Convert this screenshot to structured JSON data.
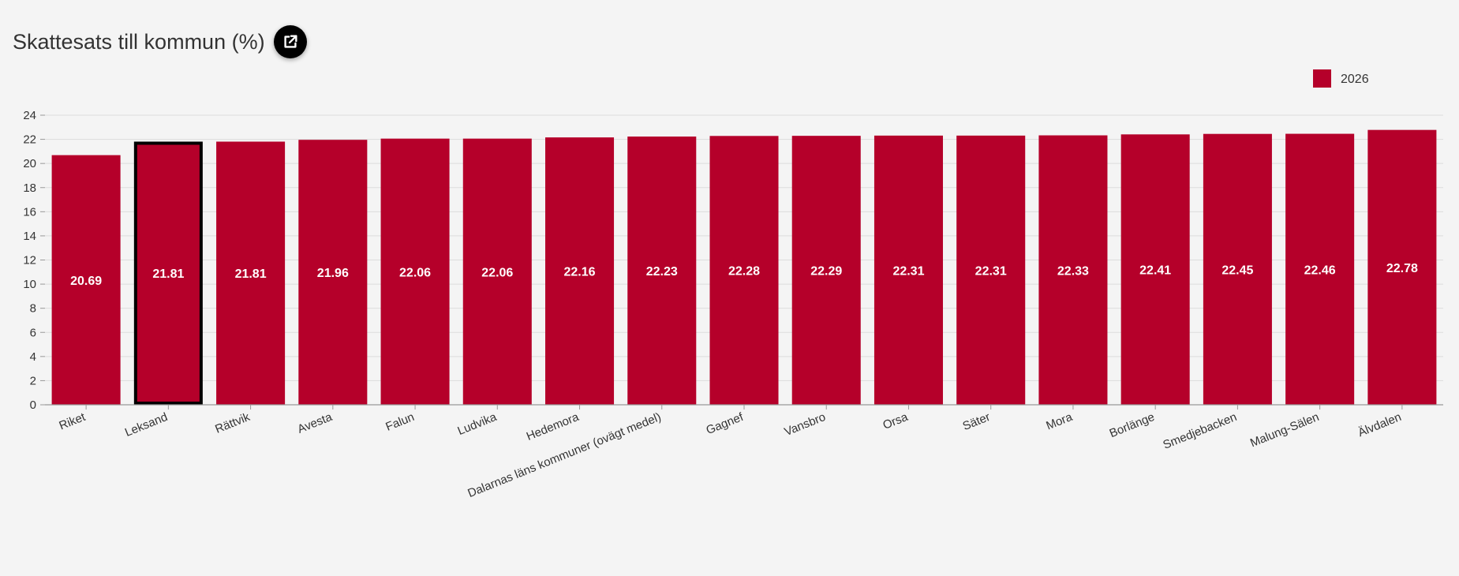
{
  "header": {
    "title": "Skattesats till kommun (%)",
    "open_icon": "external-link-icon"
  },
  "chart_data": {
    "type": "bar",
    "categories": [
      "Riket",
      "Leksand",
      "Rättvik",
      "Avesta",
      "Falun",
      "Ludvika",
      "Hedemora",
      "Dalarnas läns kommuner (ovägt medel)",
      "Gagnef",
      "Vansbro",
      "Orsa",
      "Säter",
      "Mora",
      "Borlänge",
      "Smedjebacken",
      "Malung-Sälen",
      "Älvdalen"
    ],
    "series": [
      {
        "name": "2026",
        "color": "#b5002a",
        "values": [
          20.69,
          21.81,
          21.81,
          21.96,
          22.06,
          22.06,
          22.16,
          22.23,
          22.28,
          22.29,
          22.31,
          22.31,
          22.33,
          22.41,
          22.45,
          22.46,
          22.78
        ],
        "labels": [
          "20.69",
          "21.81",
          "21.81",
          "21.96",
          "22.06",
          "22.06",
          "22.16",
          "22.23",
          "22.28",
          "22.29",
          "22.31",
          "22.31",
          "22.33",
          "22.41",
          "22.45",
          "22.46",
          "22.78"
        ]
      }
    ],
    "highlighted_category": "Leksand",
    "ylim": [
      0,
      24
    ],
    "yticks": [
      "0",
      "2",
      "4",
      "6",
      "8",
      "10",
      "12",
      "14",
      "16",
      "18",
      "20",
      "22",
      "24"
    ],
    "grid": true,
    "legend_position": "top-right",
    "title": "",
    "xlabel": "",
    "ylabel": ""
  }
}
